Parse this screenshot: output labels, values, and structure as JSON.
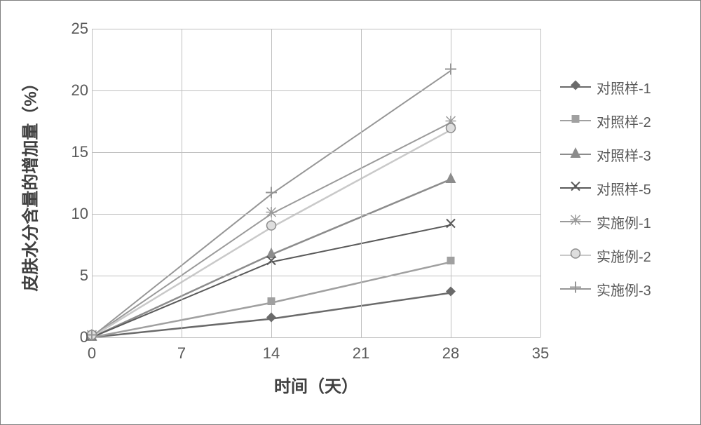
{
  "chart": {
    "type": "line",
    "background_color": "#ffffff",
    "grid_color": "#bfbfbf",
    "axis_color": "#808080",
    "tick_fontsize": 22,
    "label_fontsize": 24,
    "xlabel": "时间（天）",
    "ylabel": "皮肤水分含量的增加量（%）",
    "xlim": [
      0,
      35
    ],
    "ylim": [
      0,
      25
    ],
    "xtick_step": 7,
    "ytick_step": 5,
    "xticks": [
      0,
      7,
      14,
      21,
      28,
      35
    ],
    "yticks": [
      0,
      5,
      10,
      15,
      20,
      25
    ],
    "x_values": [
      0,
      14,
      28
    ],
    "series": [
      {
        "name": "对照样-1",
        "color": "#6a6a6a",
        "line_width": 2.5,
        "marker": "diamond",
        "marker_fill": "#6a6a6a",
        "marker_size": 14,
        "values": [
          0,
          1.5,
          3.6
        ]
      },
      {
        "name": "对照样-2",
        "color": "#a0a0a0",
        "line_width": 2.5,
        "marker": "square",
        "marker_fill": "#a0a0a0",
        "marker_size": 13,
        "values": [
          0,
          2.8,
          6.1
        ]
      },
      {
        "name": "对照样-3",
        "color": "#8c8c8c",
        "line_width": 2.5,
        "marker": "triangle",
        "marker_fill": "#8c8c8c",
        "marker_size": 15,
        "values": [
          0,
          6.7,
          12.8
        ]
      },
      {
        "name": "对照样-5",
        "color": "#5a5a5a",
        "line_width": 2,
        "marker": "cross",
        "marker_fill": "#5a5a5a",
        "marker_size": 14,
        "values": [
          0,
          6.1,
          9.1
        ]
      },
      {
        "name": "实施例-1",
        "color": "#9a9a9a",
        "line_width": 2,
        "marker": "asterisk",
        "marker_fill": "#9a9a9a",
        "marker_size": 15,
        "values": [
          0.05,
          10.0,
          17.4
        ]
      },
      {
        "name": "实施例-2",
        "color": "#c9c9c9",
        "line_width": 2.5,
        "marker": "circle",
        "marker_fill": "#dedede",
        "marker_stroke": "#8c8c8c",
        "marker_size": 15,
        "values": [
          0.05,
          8.9,
          16.8
        ]
      },
      {
        "name": "实施例-3",
        "color": "#969696",
        "line_width": 2,
        "marker": "plus",
        "marker_fill": "#969696",
        "marker_size": 16,
        "values": [
          0.05,
          11.6,
          21.6
        ]
      }
    ]
  }
}
